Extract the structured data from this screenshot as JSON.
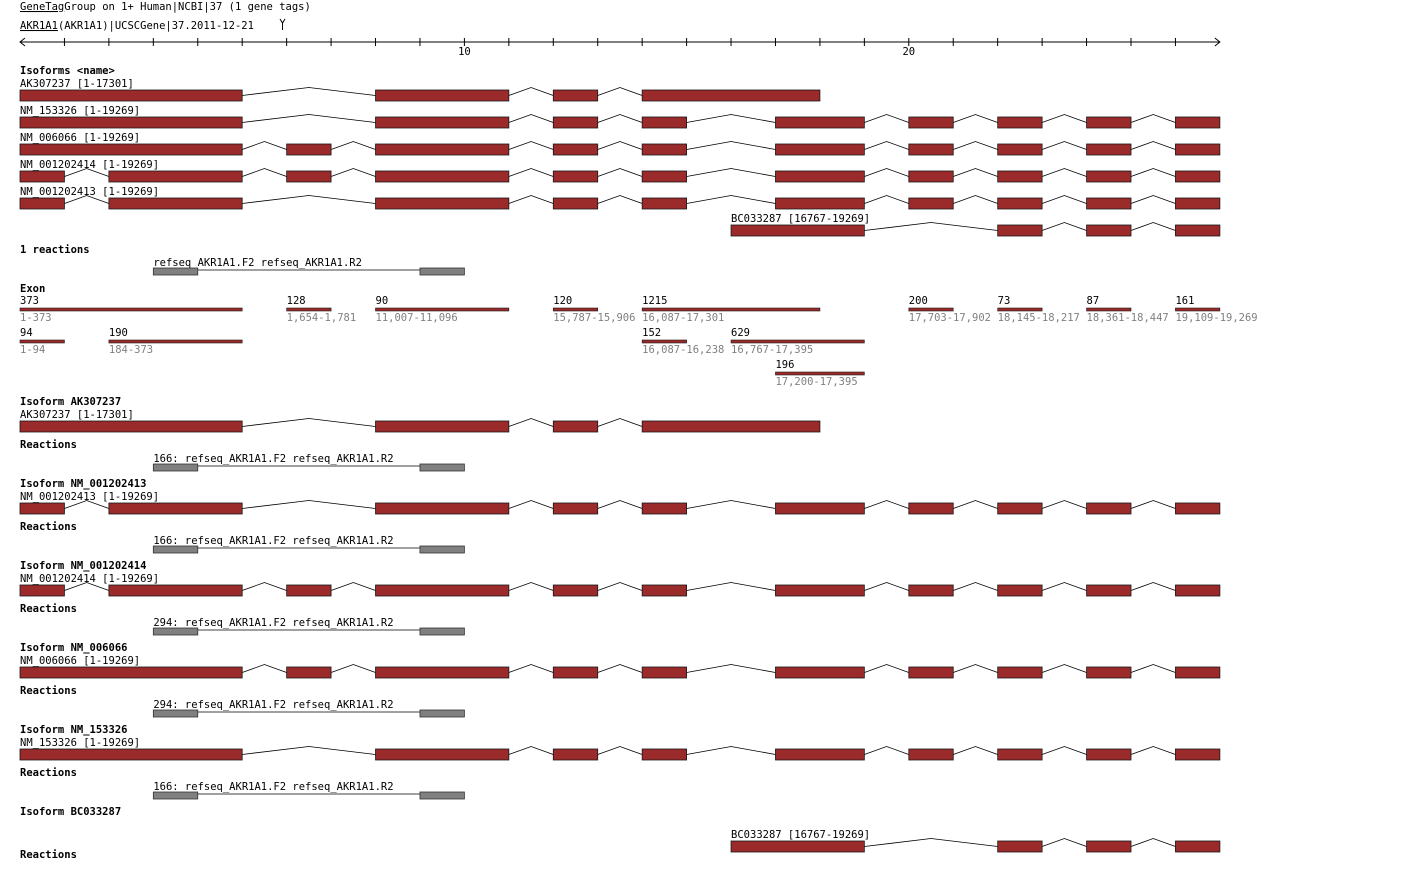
{
  "header": {
    "line1_link": "GeneTag",
    "line1_rest": "Group on 1+ Human|NCBI|37 (1 gene tags)",
    "line2_link": "AKR1A1",
    "line2_rest": "(AKR1A1)|UCSCGene|37.2011-12-21",
    "line2_icon": "chevron-down-icon"
  },
  "ruler": {
    "min": 0,
    "max": 27,
    "ticks": [
      10,
      20
    ]
  },
  "colors": {
    "exon_fill": "#9b2a2a",
    "exon_stroke": "#1a1a1a",
    "primer_fill": "#808080",
    "intron_line": "#000000",
    "sublabel": "#808080"
  },
  "isoforms_section": {
    "heading": "Isoforms <name>",
    "tracks": [
      {
        "label": "AK307237 [1-17301]",
        "exons": [
          [
            0,
            5
          ],
          [
            8,
            11
          ],
          [
            12,
            13
          ],
          [
            14,
            18
          ]
        ]
      },
      {
        "label": "NM_153326 [1-19269]",
        "exons": [
          [
            0,
            5
          ],
          [
            8,
            11
          ],
          [
            12,
            13
          ],
          [
            14,
            15
          ],
          [
            17,
            19
          ],
          [
            20,
            21
          ],
          [
            22,
            23
          ],
          [
            24,
            25
          ],
          [
            26,
            27
          ]
        ]
      },
      {
        "label": "NM_006066 [1-19269]",
        "exons": [
          [
            0,
            5
          ],
          [
            6,
            7
          ],
          [
            8,
            11
          ],
          [
            12,
            13
          ],
          [
            14,
            15
          ],
          [
            17,
            19
          ],
          [
            20,
            21
          ],
          [
            22,
            23
          ],
          [
            24,
            25
          ],
          [
            26,
            27
          ]
        ]
      },
      {
        "label": "NM_001202414 [1-19269]",
        "exons": [
          [
            0,
            1
          ],
          [
            2,
            5
          ],
          [
            6,
            7
          ],
          [
            8,
            11
          ],
          [
            12,
            13
          ],
          [
            14,
            15
          ],
          [
            17,
            19
          ],
          [
            20,
            21
          ],
          [
            22,
            23
          ],
          [
            24,
            25
          ],
          [
            26,
            27
          ]
        ]
      },
      {
        "label": "NM_001202413 [1-19269]",
        "exons": [
          [
            0,
            1
          ],
          [
            2,
            5
          ],
          [
            8,
            11
          ],
          [
            12,
            13
          ],
          [
            14,
            15
          ],
          [
            17,
            19
          ],
          [
            20,
            21
          ],
          [
            22,
            23
          ],
          [
            24,
            25
          ],
          [
            26,
            27
          ]
        ]
      },
      {
        "label": "BC033287 [16767-19269]",
        "exons": [
          [
            16,
            19
          ],
          [
            22,
            23
          ],
          [
            24,
            25
          ],
          [
            26,
            27
          ]
        ]
      }
    ]
  },
  "reactions_section": {
    "heading": "1 reactions",
    "primer_label": "refseq_AKR1A1.F2 refseq_AKR1A1.R2",
    "primers": [
      [
        3,
        4
      ],
      [
        9,
        10
      ]
    ]
  },
  "exon_section": {
    "heading": "Exon",
    "rows": [
      [
        {
          "len": "373",
          "range": "1-373",
          "span": [
            0,
            5
          ]
        },
        {
          "len": "128",
          "range": "1,654-1,781",
          "span": [
            6,
            7
          ]
        },
        {
          "len": "90",
          "range": "11,007-11,096",
          "span": [
            8,
            11
          ]
        },
        {
          "len": "120",
          "range": "15,787-15,906",
          "span": [
            12,
            13
          ]
        },
        {
          "len": "1215",
          "range": "16,087-17,301",
          "span": [
            14,
            18
          ]
        },
        {
          "len": "200",
          "range": "17,703-17,902",
          "span": [
            20,
            21
          ]
        },
        {
          "len": "73",
          "range": "18,145-18,217",
          "span": [
            22,
            23
          ]
        },
        {
          "len": "87",
          "range": "18,361-18,447",
          "span": [
            24,
            25
          ]
        },
        {
          "len": "161",
          "range": "19,109-19,269",
          "span": [
            26,
            27
          ]
        }
      ],
      [
        {
          "len": "94",
          "range": "1-94",
          "span": [
            0,
            1
          ]
        },
        {
          "len": "190",
          "range": "184-373",
          "span": [
            2,
            5
          ]
        },
        {
          "len": "152",
          "range": "16,087-16,238",
          "span": [
            14,
            15
          ]
        },
        {
          "len": "629",
          "range": "16,767-17,395",
          "span": [
            16,
            19
          ]
        }
      ],
      [
        {
          "len": "196",
          "range": "17,200-17,395",
          "span": [
            17,
            19
          ]
        }
      ]
    ]
  },
  "isoform_details": [
    {
      "title": "Isoform AK307237",
      "track_label": "AK307237 [1-17301]",
      "exons": [
        [
          0,
          5
        ],
        [
          8,
          11
        ],
        [
          12,
          13
        ],
        [
          14,
          18
        ]
      ],
      "reactions_heading": "Reactions",
      "reaction_label": "166: refseq_AKR1A1.F2 refseq_AKR1A1.R2"
    },
    {
      "title": "Isoform NM_001202413",
      "track_label": "NM_001202413 [1-19269]",
      "exons": [
        [
          0,
          1
        ],
        [
          2,
          5
        ],
        [
          8,
          11
        ],
        [
          12,
          13
        ],
        [
          14,
          15
        ],
        [
          17,
          19
        ],
        [
          20,
          21
        ],
        [
          22,
          23
        ],
        [
          24,
          25
        ],
        [
          26,
          27
        ]
      ],
      "reactions_heading": "Reactions",
      "reaction_label": "166: refseq_AKR1A1.F2 refseq_AKR1A1.R2"
    },
    {
      "title": "Isoform NM_001202414",
      "track_label": "NM_001202414 [1-19269]",
      "exons": [
        [
          0,
          1
        ],
        [
          2,
          5
        ],
        [
          6,
          7
        ],
        [
          8,
          11
        ],
        [
          12,
          13
        ],
        [
          14,
          15
        ],
        [
          17,
          19
        ],
        [
          20,
          21
        ],
        [
          22,
          23
        ],
        [
          24,
          25
        ],
        [
          26,
          27
        ]
      ],
      "reactions_heading": "Reactions",
      "reaction_label": "294: refseq_AKR1A1.F2 refseq_AKR1A1.R2"
    },
    {
      "title": "Isoform NM_006066",
      "track_label": "NM_006066 [1-19269]",
      "exons": [
        [
          0,
          5
        ],
        [
          6,
          7
        ],
        [
          8,
          11
        ],
        [
          12,
          13
        ],
        [
          14,
          15
        ],
        [
          17,
          19
        ],
        [
          20,
          21
        ],
        [
          22,
          23
        ],
        [
          24,
          25
        ],
        [
          26,
          27
        ]
      ],
      "reactions_heading": "Reactions",
      "reaction_label": "294: refseq_AKR1A1.F2 refseq_AKR1A1.R2"
    },
    {
      "title": "Isoform NM_153326",
      "track_label": "NM_153326 [1-19269]",
      "exons": [
        [
          0,
          5
        ],
        [
          8,
          11
        ],
        [
          12,
          13
        ],
        [
          14,
          15
        ],
        [
          17,
          19
        ],
        [
          20,
          21
        ],
        [
          22,
          23
        ],
        [
          24,
          25
        ],
        [
          26,
          27
        ]
      ],
      "reactions_heading": "Reactions",
      "reaction_label": "166: refseq_AKR1A1.F2 refseq_AKR1A1.R2"
    },
    {
      "title": "Isoform BC033287",
      "track_label": "BC033287 [16767-19269]",
      "exons": [
        [
          16,
          19
        ],
        [
          22,
          23
        ],
        [
          24,
          25
        ],
        [
          26,
          27
        ]
      ],
      "reactions_heading": "Reactions",
      "reaction_label": ""
    }
  ]
}
